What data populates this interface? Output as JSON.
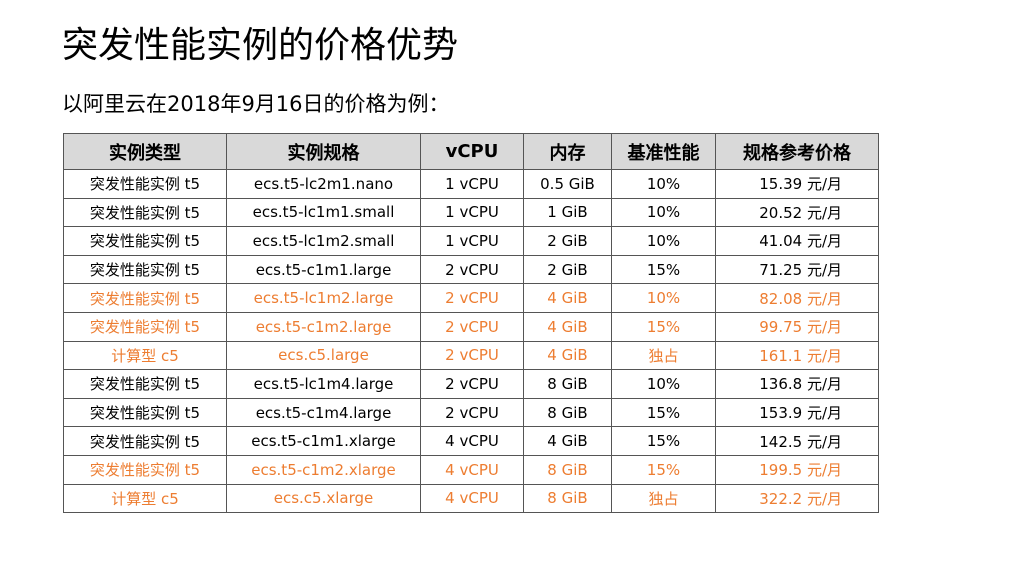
{
  "slide": {
    "title": "突发性能实例的价格优势",
    "subtitle": "以阿里云在2018年9月16日的价格为例："
  },
  "colors": {
    "highlight": "#ed7d31",
    "header_bg": "#d9d9d9",
    "border": "#555555"
  },
  "table": {
    "headers": [
      "实例类型",
      "实例规格",
      "vCPU",
      "内存",
      "基准性能",
      "规格参考价格"
    ],
    "rows": [
      {
        "highlight": false,
        "cells": [
          "突发性能实例 t5",
          "ecs.t5-lc2m1.nano",
          "1 vCPU",
          "0.5 GiB",
          "10%",
          "15.39 元/月"
        ]
      },
      {
        "highlight": false,
        "cells": [
          "突发性能实例 t5",
          "ecs.t5-lc1m1.small",
          "1 vCPU",
          "1 GiB",
          "10%",
          "20.52 元/月"
        ]
      },
      {
        "highlight": false,
        "cells": [
          "突发性能实例 t5",
          "ecs.t5-lc1m2.small",
          "1 vCPU",
          "2 GiB",
          "10%",
          "41.04 元/月"
        ]
      },
      {
        "highlight": false,
        "cells": [
          "突发性能实例 t5",
          "ecs.t5-c1m1.large",
          "2 vCPU",
          "2 GiB",
          "15%",
          "71.25 元/月"
        ]
      },
      {
        "highlight": true,
        "cells": [
          "突发性能实例 t5",
          "ecs.t5-lc1m2.large",
          "2 vCPU",
          "4 GiB",
          "10%",
          "82.08 元/月"
        ]
      },
      {
        "highlight": true,
        "cells": [
          "突发性能实例 t5",
          "ecs.t5-c1m2.large",
          "2 vCPU",
          "4 GiB",
          "15%",
          "99.75 元/月"
        ]
      },
      {
        "highlight": true,
        "cells": [
          "计算型 c5",
          "ecs.c5.large",
          "2 vCPU",
          "4 GiB",
          "独占",
          "161.1 元/月"
        ]
      },
      {
        "highlight": false,
        "cells": [
          "突发性能实例 t5",
          "ecs.t5-lc1m4.large",
          "2 vCPU",
          "8 GiB",
          "10%",
          "136.8 元/月"
        ]
      },
      {
        "highlight": false,
        "cells": [
          "突发性能实例 t5",
          "ecs.t5-c1m4.large",
          "2 vCPU",
          "8 GiB",
          "15%",
          "153.9 元/月"
        ]
      },
      {
        "highlight": false,
        "cells": [
          "突发性能实例 t5",
          "ecs.t5-c1m1.xlarge",
          "4 vCPU",
          "4 GiB",
          "15%",
          "142.5 元/月"
        ]
      },
      {
        "highlight": true,
        "cells": [
          "突发性能实例 t5",
          "ecs.t5-c1m2.xlarge",
          "4 vCPU",
          "8 GiB",
          "15%",
          "199.5 元/月"
        ]
      },
      {
        "highlight": true,
        "cells": [
          "计算型 c5",
          "ecs.c5.xlarge",
          "4 vCPU",
          "8 GiB",
          "独占",
          "322.2 元/月"
        ]
      }
    ]
  }
}
